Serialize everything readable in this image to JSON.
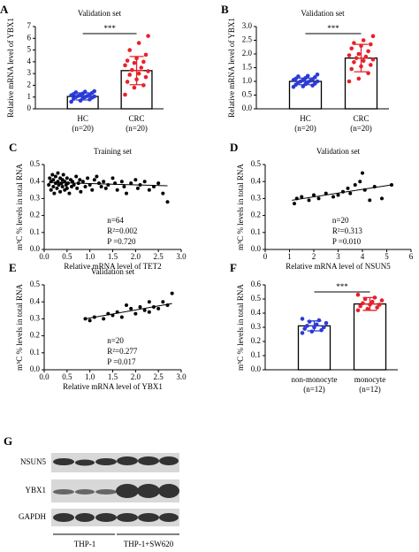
{
  "chart_data": [
    {
      "type": "bar_scatter",
      "panel_label": "A",
      "title": "Validation set",
      "ylabel": "Relative mRNA level of YBX1",
      "categories": [
        "HC",
        "CRC"
      ],
      "category_notes": [
        "(n=20)",
        "(n=20)"
      ],
      "significance": "***",
      "values": [
        1.05,
        3.25
      ],
      "errors": [
        0.3,
        1.2
      ],
      "colors": [
        "#2b3bd6",
        "#e8202a"
      ],
      "points": [
        [
          0.6,
          0.7,
          0.8,
          0.85,
          0.9,
          0.95,
          1.0,
          1.0,
          1.05,
          1.1,
          1.1,
          1.15,
          1.2,
          1.2,
          1.25,
          1.3,
          1.35,
          1.4,
          1.45,
          1.5
        ],
        [
          1.2,
          1.8,
          2.0,
          2.3,
          2.5,
          2.7,
          2.9,
          3.0,
          3.2,
          3.3,
          3.5,
          3.7,
          3.9,
          4.0,
          4.1,
          4.3,
          4.6,
          5.0,
          5.6,
          6.2
        ]
      ],
      "ylim": [
        0,
        7
      ],
      "yticks": [
        0,
        1,
        2,
        3,
        4,
        5,
        6,
        7
      ]
    },
    {
      "type": "bar_scatter",
      "panel_label": "B",
      "title": "Validation set",
      "ylabel": "Relative mRNA level of YBX1",
      "categories": [
        "HC",
        "CRC"
      ],
      "category_notes": [
        "(n=20)",
        "(n=20)"
      ],
      "significance": "***",
      "values": [
        1.0,
        1.85
      ],
      "errors": [
        0.12,
        0.5
      ],
      "colors": [
        "#2b3bd6",
        "#e8202a"
      ],
      "points": [
        [
          0.8,
          0.82,
          0.85,
          0.88,
          0.9,
          0.92,
          0.95,
          0.97,
          1.0,
          1.0,
          1.02,
          1.05,
          1.05,
          1.08,
          1.1,
          1.12,
          1.15,
          1.18,
          1.2,
          1.25
        ],
        [
          1.0,
          1.1,
          1.3,
          1.45,
          1.55,
          1.6,
          1.7,
          1.75,
          1.8,
          1.85,
          1.9,
          1.95,
          2.0,
          2.1,
          2.2,
          2.3,
          2.35,
          2.4,
          2.5,
          2.65
        ]
      ],
      "ylim": [
        0,
        3
      ],
      "yticks": [
        {
          "value": 0,
          "label": "0.0"
        },
        0.5,
        {
          "value": 1,
          "label": "1.0"
        },
        1.5,
        {
          "value": 2,
          "label": "2.0"
        },
        2.5,
        {
          "value": 3,
          "label": "3.0"
        }
      ]
    },
    {
      "type": "scatter",
      "panel_label": "C",
      "title": "Training set",
      "ylabel": "m⁵C % levels in total RNA",
      "xlabel": "Relative mRNA level of TET2",
      "annotations": [
        "n=64",
        "R²=0.002",
        "P =0.720"
      ],
      "x": [
        0.1,
        0.12,
        0.15,
        0.15,
        0.18,
        0.2,
        0.2,
        0.22,
        0.25,
        0.25,
        0.28,
        0.3,
        0.3,
        0.32,
        0.35,
        0.35,
        0.38,
        0.4,
        0.4,
        0.42,
        0.45,
        0.45,
        0.48,
        0.5,
        0.5,
        0.52,
        0.55,
        0.58,
        0.6,
        0.62,
        0.65,
        0.7,
        0.72,
        0.75,
        0.78,
        0.8,
        0.85,
        0.9,
        0.95,
        1.0,
        1.05,
        1.1,
        1.15,
        1.2,
        1.25,
        1.3,
        1.35,
        1.4,
        1.5,
        1.55,
        1.6,
        1.7,
        1.75,
        1.8,
        1.9,
        2.0,
        2.05,
        2.1,
        2.2,
        2.3,
        2.4,
        2.5,
        2.6,
        2.7
      ],
      "values": [
        0.38,
        0.42,
        0.35,
        0.4,
        0.44,
        0.37,
        0.41,
        0.33,
        0.39,
        0.43,
        0.36,
        0.4,
        0.45,
        0.38,
        0.34,
        0.42,
        0.39,
        0.41,
        0.37,
        0.44,
        0.35,
        0.4,
        0.38,
        0.42,
        0.36,
        0.39,
        0.33,
        0.41,
        0.37,
        0.4,
        0.38,
        0.43,
        0.36,
        0.39,
        0.41,
        0.34,
        0.4,
        0.37,
        0.42,
        0.38,
        0.35,
        0.41,
        0.43,
        0.39,
        0.37,
        0.4,
        0.36,
        0.38,
        0.42,
        0.39,
        0.35,
        0.4,
        0.37,
        0.33,
        0.39,
        0.41,
        0.36,
        0.38,
        0.4,
        0.35,
        0.37,
        0.39,
        0.33,
        0.28
      ],
      "trend": {
        "x": [
          0.1,
          2.7
        ],
        "y": [
          0.395,
          0.375
        ]
      },
      "xlim": [
        0,
        3
      ],
      "xticks": [
        {
          "value": 0,
          "label": "0.0"
        },
        0.5,
        {
          "value": 1,
          "label": "1.0"
        },
        1.5,
        {
          "value": 2,
          "label": "2.0"
        },
        2.5,
        {
          "value": 3,
          "label": "3.0"
        }
      ],
      "ylim": [
        0,
        0.5
      ],
      "yticks": [
        {
          "value": 0,
          "label": "0.0"
        },
        0.1,
        0.2,
        0.3,
        0.4,
        0.5
      ]
    },
    {
      "type": "scatter",
      "panel_label": "D",
      "title": "Validation set",
      "ylabel": "m⁵C % levels in total RNA",
      "xlabel": "Relative mRNA level of NSUN5",
      "annotations": [
        "n=20",
        "R²=0.313",
        "P =0.010"
      ],
      "x": [
        1.2,
        1.3,
        1.5,
        1.8,
        2.0,
        2.2,
        2.5,
        2.8,
        3.0,
        3.2,
        3.4,
        3.5,
        3.7,
        3.9,
        4.0,
        4.1,
        4.3,
        4.5,
        4.8,
        5.2
      ],
      "values": [
        0.27,
        0.3,
        0.31,
        0.29,
        0.32,
        0.3,
        0.33,
        0.31,
        0.32,
        0.34,
        0.36,
        0.33,
        0.38,
        0.4,
        0.45,
        0.35,
        0.29,
        0.37,
        0.3,
        0.38
      ],
      "trend": {
        "x": [
          1.1,
          5.2
        ],
        "y": [
          0.29,
          0.38
        ]
      },
      "xlim": [
        0,
        6
      ],
      "xticks": [
        0,
        1,
        2,
        3,
        4,
        5,
        6
      ],
      "ylim": [
        0,
        0.5
      ],
      "yticks": [
        {
          "value": 0,
          "label": "0.0"
        },
        0.1,
        0.2,
        0.3,
        0.4,
        0.5
      ]
    },
    {
      "type": "scatter",
      "panel_label": "E",
      "title": "Validation set",
      "ylabel": "m⁵C % levels in total RNA",
      "xlabel": "Relative mRNA level of YBX1",
      "annotations": [
        "n=20",
        "R²=0.277",
        "P =0.017"
      ],
      "x": [
        0.9,
        1.0,
        1.1,
        1.3,
        1.4,
        1.5,
        1.6,
        1.7,
        1.8,
        1.9,
        2.0,
        2.1,
        2.2,
        2.3,
        2.3,
        2.4,
        2.5,
        2.6,
        2.7,
        2.8
      ],
      "values": [
        0.3,
        0.29,
        0.31,
        0.3,
        0.33,
        0.32,
        0.34,
        0.31,
        0.38,
        0.36,
        0.33,
        0.37,
        0.35,
        0.4,
        0.34,
        0.37,
        0.36,
        0.4,
        0.38,
        0.45
      ],
      "trend": {
        "x": [
          0.9,
          2.8
        ],
        "y": [
          0.3,
          0.39
        ]
      },
      "xlim": [
        0,
        3
      ],
      "xticks": [
        {
          "value": 0,
          "label": "0.0"
        },
        0.5,
        {
          "value": 1,
          "label": "1.0"
        },
        1.5,
        {
          "value": 2,
          "label": "2.0"
        },
        2.5,
        {
          "value": 3,
          "label": "3.0"
        }
      ],
      "ylim": [
        0,
        0.5
      ],
      "yticks": [
        {
          "value": 0,
          "label": "0.0"
        },
        0.1,
        0.2,
        0.3,
        0.4,
        0.5
      ]
    },
    {
      "type": "bar_scatter",
      "panel_label": "F",
      "ylabel": "m⁵C % levels in total RNA",
      "categories": [
        "non-monocyte",
        "monocyte"
      ],
      "category_notes": [
        "(n=12)",
        "(n=12)"
      ],
      "significance": "***",
      "values": [
        0.31,
        0.465
      ],
      "errors": [
        0.035,
        0.045
      ],
      "colors": [
        "#2b3bd6",
        "#e8202a"
      ],
      "points": [
        [
          0.26,
          0.27,
          0.28,
          0.29,
          0.3,
          0.3,
          0.31,
          0.32,
          0.33,
          0.34,
          0.35,
          0.36
        ],
        [
          0.42,
          0.43,
          0.44,
          0.45,
          0.46,
          0.46,
          0.47,
          0.48,
          0.49,
          0.5,
          0.51,
          0.53
        ]
      ],
      "ylim": [
        0,
        0.6
      ],
      "yticks": [
        {
          "value": 0,
          "label": "0.0"
        },
        0.1,
        0.2,
        0.3,
        0.4,
        0.5,
        0.6
      ]
    }
  ],
  "blot": {
    "panel_label": "G",
    "rows": [
      "NSUN5",
      "YBX1",
      "GAPDH"
    ],
    "groups": [
      "THP-1",
      "THP-1+SW620"
    ]
  }
}
